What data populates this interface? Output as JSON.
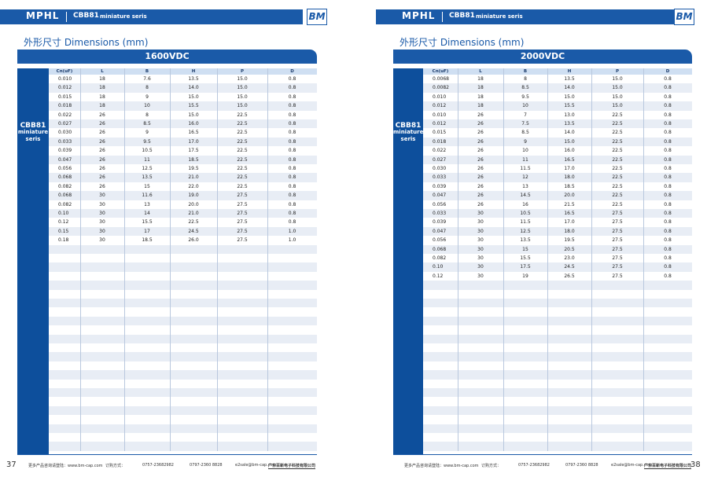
{
  "pages": [
    {
      "header": {
        "brand": "MPHL",
        "series": "CBB81",
        "series_sub": "miniature seris",
        "logo": "BM"
      },
      "section_title": "外形尺寸 Dimensions (mm)",
      "table": {
        "title": "1600VDC",
        "side_label": [
          "CBB81",
          "miniature",
          "seris"
        ],
        "columns": [
          "Cn(uF)",
          "L",
          "B",
          "H",
          "P",
          "D"
        ],
        "rows": [
          [
            "0.010",
            "18",
            "7.6",
            "13.5",
            "15.0",
            "0.8"
          ],
          [
            "0.012",
            "18",
            "8",
            "14.0",
            "15.0",
            "0.8"
          ],
          [
            "0.015",
            "18",
            "9",
            "15.0",
            "15.0",
            "0.8"
          ],
          [
            "0.018",
            "18",
            "10",
            "15.5",
            "15.0",
            "0.8"
          ],
          [
            "0.022",
            "26",
            "8",
            "15.0",
            "22.5",
            "0.8"
          ],
          [
            "0.027",
            "26",
            "8.5",
            "16.0",
            "22.5",
            "0.8"
          ],
          [
            "0.030",
            "26",
            "9",
            "16.5",
            "22.5",
            "0.8"
          ],
          [
            "0.033",
            "26",
            "9.5",
            "17.0",
            "22.5",
            "0.8"
          ],
          [
            "0.039",
            "26",
            "10.5",
            "17.5",
            "22.5",
            "0.8"
          ],
          [
            "0.047",
            "26",
            "11",
            "18.5",
            "22.5",
            "0.8"
          ],
          [
            "0.056",
            "26",
            "12.5",
            "19.5",
            "22.5",
            "0.8"
          ],
          [
            "0.068",
            "26",
            "13.5",
            "21.0",
            "22.5",
            "0.8"
          ],
          [
            "0.082",
            "26",
            "15",
            "22.0",
            "22.5",
            "0.8"
          ],
          [
            "0.068",
            "30",
            "11.6",
            "19.0",
            "27.5",
            "0.8"
          ],
          [
            "0.082",
            "30",
            "13",
            "20.0",
            "27.5",
            "0.8"
          ],
          [
            "0.10",
            "30",
            "14",
            "21.0",
            "27.5",
            "0.8"
          ],
          [
            "0.12",
            "30",
            "15.5",
            "22.5",
            "27.5",
            "0.8"
          ],
          [
            "0.15",
            "30",
            "17",
            "24.5",
            "27.5",
            "1.0"
          ],
          [
            "0.18",
            "30",
            "18.5",
            "26.0",
            "27.5",
            "1.0"
          ]
        ]
      },
      "footer": {
        "page_number": "37",
        "website": "更多产品咨询请登陆：www.bm-cap.com",
        "order": "订购方式：",
        "phone1": "0757-23682982",
        "phone2": "0797-2360 8828",
        "email": "e2sale@bm-cap.com",
        "company": "广东百新电子科技有限公司"
      }
    },
    {
      "header": {
        "brand": "MPHL",
        "series": "CBB81",
        "series_sub": "miniature seris",
        "logo": "BM"
      },
      "section_title": "外形尺寸 Dimensions (mm)",
      "table": {
        "title": "2000VDC",
        "side_label": [
          "CBB81",
          "miniature",
          "seris"
        ],
        "columns": [
          "Cn(uF)",
          "L",
          "B",
          "H",
          "P",
          "D"
        ],
        "rows": [
          [
            "0.0068",
            "18",
            "8",
            "13.5",
            "15.0",
            "0.8"
          ],
          [
            "0.0082",
            "18",
            "8.5",
            "14.0",
            "15.0",
            "0.8"
          ],
          [
            "0.010",
            "18",
            "9.5",
            "15.0",
            "15.0",
            "0.8"
          ],
          [
            "0.012",
            "18",
            "10",
            "15.5",
            "15.0",
            "0.8"
          ],
          [
            "0.010",
            "26",
            "7",
            "13.0",
            "22.5",
            "0.8"
          ],
          [
            "0.012",
            "26",
            "7.5",
            "13.5",
            "22.5",
            "0.8"
          ],
          [
            "0.015",
            "26",
            "8.5",
            "14.0",
            "22.5",
            "0.8"
          ],
          [
            "0.018",
            "26",
            "9",
            "15.0",
            "22.5",
            "0.8"
          ],
          [
            "0.022",
            "26",
            "10",
            "16.0",
            "22.5",
            "0.8"
          ],
          [
            "0.027",
            "26",
            "11",
            "16.5",
            "22.5",
            "0.8"
          ],
          [
            "0.030",
            "26",
            "11.5",
            "17.0",
            "22.5",
            "0.8"
          ],
          [
            "0.033",
            "26",
            "12",
            "18.0",
            "22.5",
            "0.8"
          ],
          [
            "0.039",
            "26",
            "13",
            "18.5",
            "22.5",
            "0.8"
          ],
          [
            "0.047",
            "26",
            "14.5",
            "20.0",
            "22.5",
            "0.8"
          ],
          [
            "0.056",
            "26",
            "16",
            "21.5",
            "22.5",
            "0.8"
          ],
          [
            "0.033",
            "30",
            "10.5",
            "16.5",
            "27.5",
            "0.8"
          ],
          [
            "0.039",
            "30",
            "11.5",
            "17.0",
            "27.5",
            "0.8"
          ],
          [
            "0.047",
            "30",
            "12.5",
            "18.0",
            "27.5",
            "0.8"
          ],
          [
            "0.056",
            "30",
            "13.5",
            "19.5",
            "27.5",
            "0.8"
          ],
          [
            "0.068",
            "30",
            "15",
            "20.5",
            "27.5",
            "0.8"
          ],
          [
            "0.082",
            "30",
            "15.5",
            "23.0",
            "27.5",
            "0.8"
          ],
          [
            "0.10",
            "30",
            "17.5",
            "24.5",
            "27.5",
            "0.8"
          ],
          [
            "0.12",
            "30",
            "19",
            "26.5",
            "27.5",
            "0.8"
          ]
        ]
      },
      "footer": {
        "page_number": "38",
        "website": "更多产品咨询请登陆：www.bm-cap.com",
        "order": "订购方式：",
        "phone1": "0757-23682982",
        "phone2": "0797-2360 8828",
        "email": "e2sale@bm-cap.com",
        "company": "广东百新电子科技有限公司"
      }
    }
  ]
}
